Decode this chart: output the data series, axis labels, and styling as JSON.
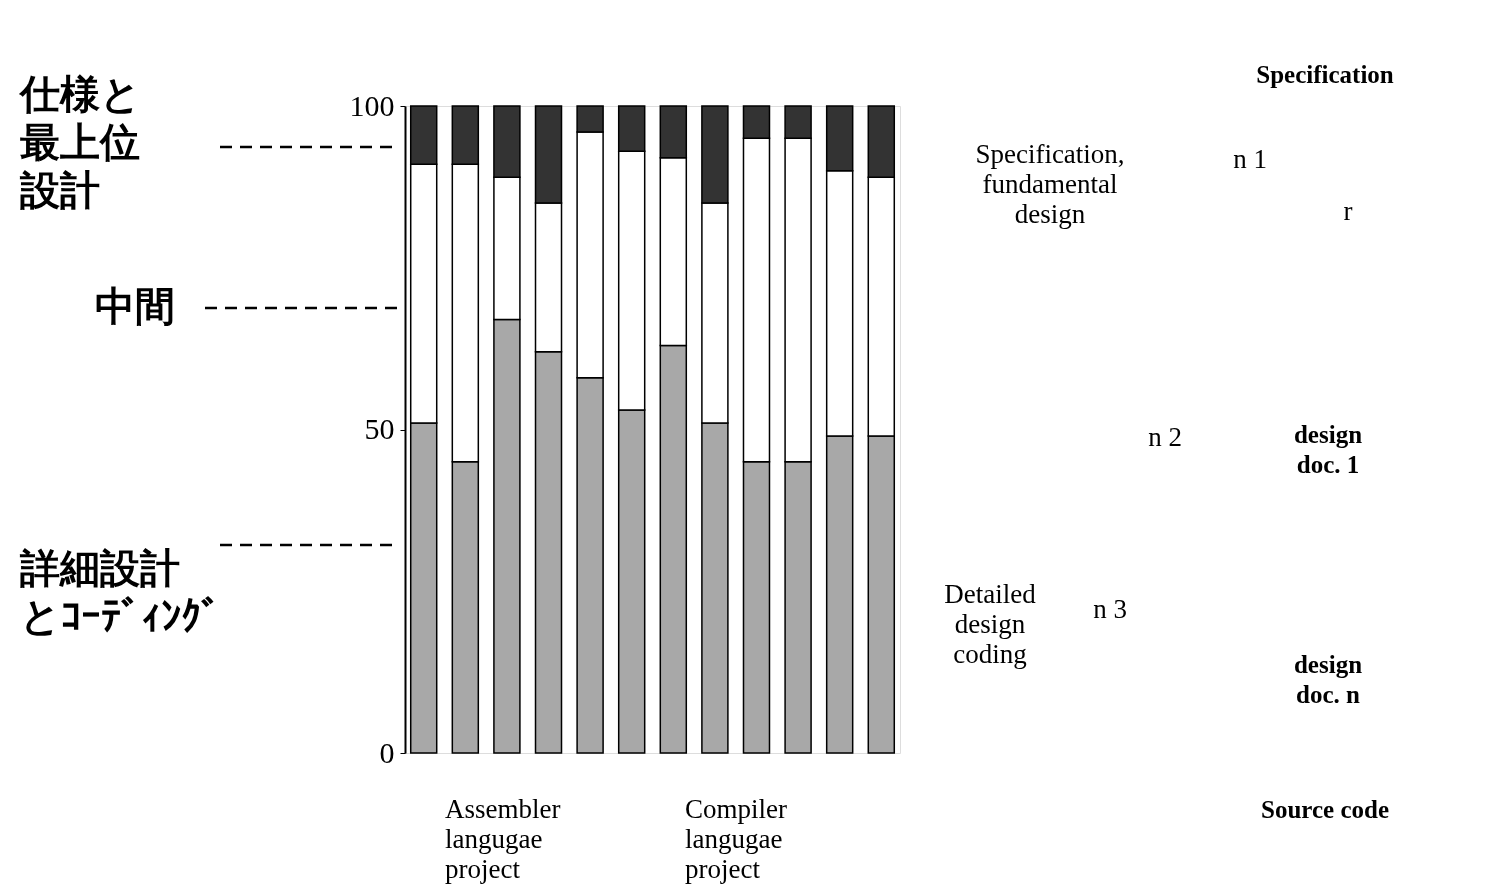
{
  "chart_data": {
    "type": "bar",
    "stacked": true,
    "categories": [
      null,
      null,
      null,
      null,
      null,
      null,
      null,
      null,
      null,
      null,
      null,
      null
    ],
    "series": [
      {
        "name": "詳細設計とｺｰﾃﾞｨﾝｸﾞ",
        "color": "#a8a8a8",
        "values": [
          51,
          45,
          67,
          62,
          58,
          53,
          63,
          51,
          45,
          45,
          49,
          49
        ]
      },
      {
        "name": "中間",
        "color": "#ffffff",
        "values": [
          40,
          46,
          22,
          23,
          38,
          40,
          29,
          34,
          50,
          50,
          41,
          40
        ]
      },
      {
        "name": "仕様と最上位設計",
        "color": "#333333",
        "values": [
          9,
          9,
          11,
          15,
          4,
          7,
          8,
          15,
          5,
          5,
          10,
          11
        ]
      }
    ],
    "ylim": [
      0,
      100
    ],
    "yticks": [
      0,
      50,
      100
    ],
    "grid": false,
    "legend": "left",
    "tick_labels": "y",
    "annotations": [
      "Specification,\nfundamental\ndesign",
      "Detailed\ndesign\ncoding",
      "Assembler\nlangugae\nproject",
      "Compiler\nlangugae\nproject",
      "Specification",
      "n 1",
      "r",
      "n 2",
      "design\ndoc. 1",
      "n 3",
      "design\ndoc. n",
      "Source code"
    ]
  }
}
